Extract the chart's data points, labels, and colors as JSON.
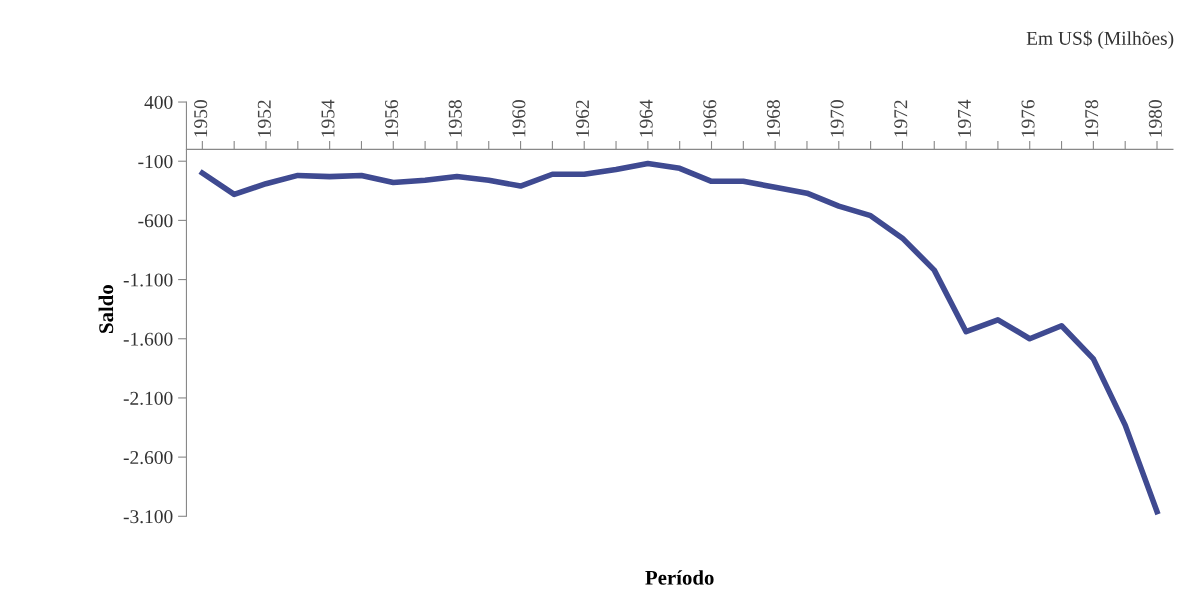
{
  "chart_data": {
    "type": "line",
    "xlabel": "Período",
    "ylabel": "Saldo",
    "annotations": [
      "Em US$ (Milhões)"
    ],
    "categories": [
      "1950",
      null,
      "1952",
      null,
      "1954",
      null,
      "1956",
      null,
      "1958",
      null,
      "1960",
      null,
      "1962",
      null,
      "1964",
      null,
      "1966",
      null,
      "1968",
      null,
      "1970",
      null,
      "1972",
      null,
      "1974",
      null,
      "1976",
      null,
      "1978",
      null,
      "1980"
    ],
    "series": [
      {
        "color": "#3f4a91",
        "values": [
          -200,
          -380,
          -290,
          -220,
          -230,
          -220,
          -280,
          -260,
          -230,
          -260,
          -310,
          -210,
          -210,
          -170,
          -120,
          -160,
          -270,
          -270,
          -320,
          -370,
          -480,
          -560,
          -750,
          -1020,
          -1540,
          -1440,
          -1600,
          -1490,
          -1770,
          -2330,
          -3060
        ]
      }
    ],
    "ylim": [
      -3100,
      400
    ],
    "yticks": [
      400,
      -100,
      -600,
      {
        "value": -1100,
        "label": "-1.100"
      },
      {
        "value": -1600,
        "label": "-1.600"
      },
      {
        "value": -2100,
        "label": "-2.100"
      },
      {
        "value": -2600,
        "label": "-2.600"
      },
      {
        "value": -3100,
        "label": "-3.100"
      }
    ],
    "grid": false,
    "legend": false,
    "marker": "none",
    "line_style": "solid"
  }
}
